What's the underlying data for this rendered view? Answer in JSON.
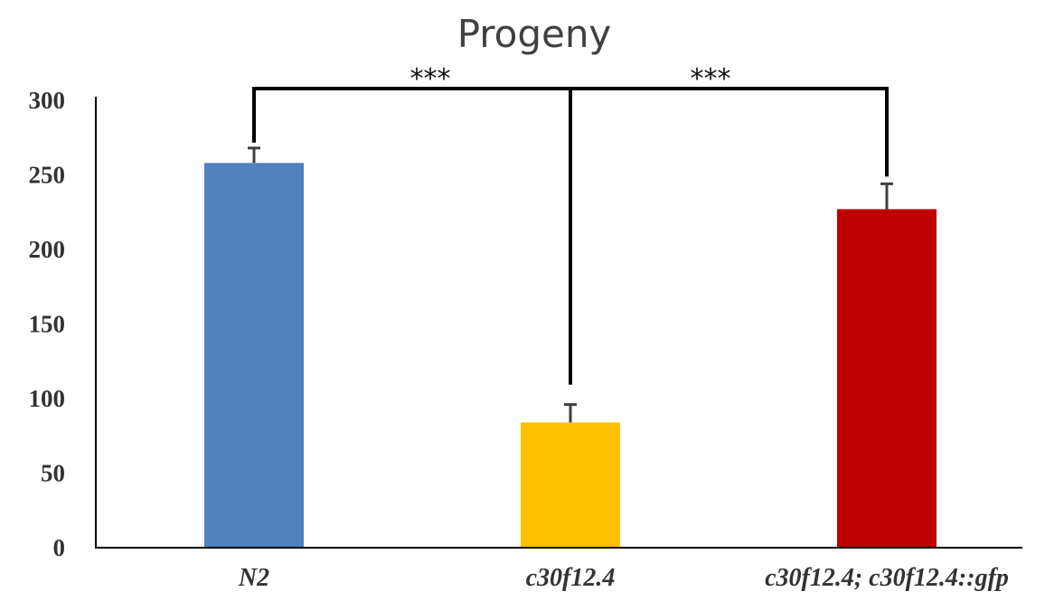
{
  "chart_data": {
    "type": "bar",
    "title": "Progeny",
    "xlabel": "",
    "ylabel": "",
    "ylim": [
      0,
      300
    ],
    "yticks": [
      0,
      50,
      100,
      150,
      200,
      250,
      300
    ],
    "grid": false,
    "categories": [
      "N2",
      "c30f12.4",
      "c30f12.4; c30f12.4::gfp"
    ],
    "values": [
      258,
      84,
      227
    ],
    "errors": [
      10,
      12,
      17
    ],
    "colors": [
      "#4f81bd",
      "#ffc000",
      "#c00000"
    ],
    "significance": [
      {
        "from": 0,
        "to": 1,
        "label": "***"
      },
      {
        "from": 1,
        "to": 2,
        "label": "***"
      }
    ]
  }
}
